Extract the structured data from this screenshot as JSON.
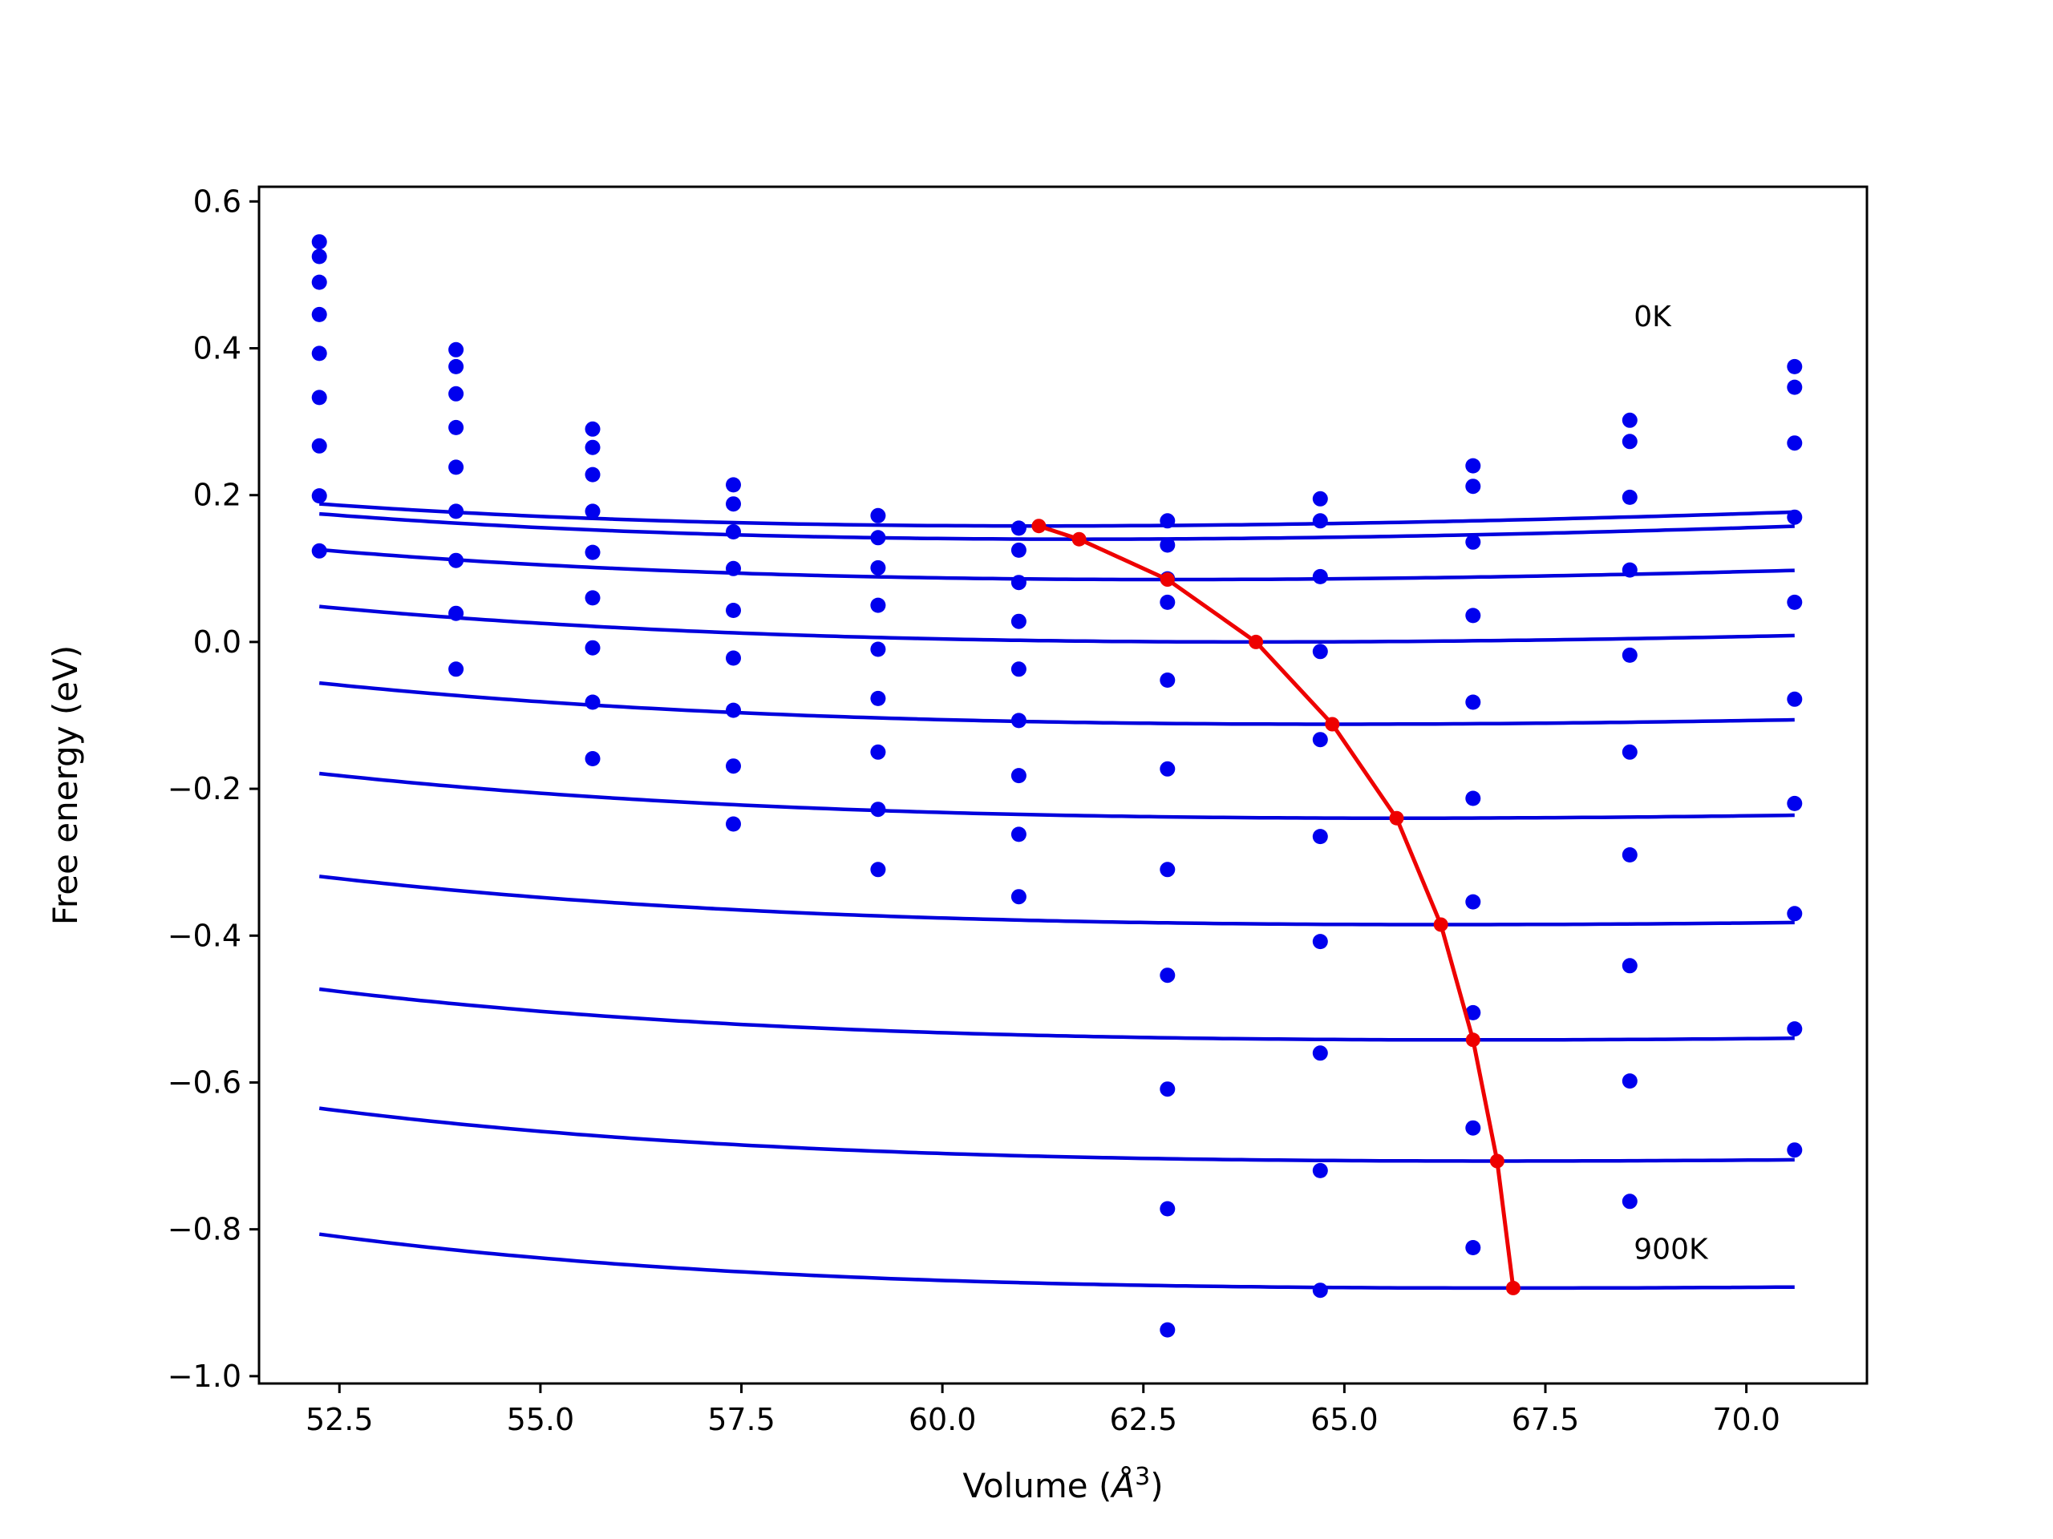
{
  "chart_data": {
    "type": "line",
    "xlabel_prefix": "Volume (",
    "xlabel_unit": "Å",
    "xlabel_exp": "3",
    "xlabel_suffix": ")",
    "ylabel": "Free energy (eV)",
    "xlim": [
      51.5,
      71.5
    ],
    "ylim": [
      -1.01,
      0.62
    ],
    "x_ticks": [
      52.5,
      55.0,
      57.5,
      60.0,
      62.5,
      65.0,
      67.5,
      70.0
    ],
    "x_tick_labels": [
      "52.5",
      "55.0",
      "57.5",
      "60.0",
      "62.5",
      "65.0",
      "67.5",
      "70.0"
    ],
    "y_ticks": [
      0.6,
      0.4,
      0.2,
      0.0,
      -0.2,
      -0.4,
      -0.6,
      -0.8,
      -1.0
    ],
    "y_tick_labels": [
      "0.6",
      "0.4",
      "0.2",
      "0.0",
      "−0.2",
      "−0.4",
      "−0.6",
      "−0.8",
      "−1.0"
    ],
    "annotations": [
      {
        "text": "0K",
        "x": 68.6,
        "y": 0.43
      },
      {
        "text": "900K",
        "x": 68.6,
        "y": -0.84
      }
    ],
    "point_x": [
      52.25,
      53.95,
      55.65,
      57.4,
      59.2,
      60.95,
      62.8,
      64.7,
      66.6,
      68.55,
      70.6
    ],
    "points_by_temperature": [
      [
        0.545,
        0.398,
        0.29,
        0.214,
        0.172,
        0.155,
        0.165,
        0.195,
        0.24,
        0.302,
        0.375
      ],
      [
        0.525,
        0.375,
        0.265,
        0.188,
        0.142,
        0.125,
        0.132,
        0.165,
        0.212,
        0.273,
        0.347
      ],
      [
        0.49,
        0.338,
        0.228,
        0.15,
        0.101,
        0.081,
        0.086,
        0.089,
        0.136,
        0.197,
        0.271
      ],
      [
        0.446,
        0.292,
        0.178,
        0.1,
        0.05,
        0.028,
        0.054,
        -0.013,
        0.036,
        0.098,
        0.17
      ],
      [
        0.393,
        0.238,
        0.122,
        0.043,
        -0.01,
        -0.037,
        -0.052,
        -0.133,
        -0.082,
        -0.018,
        0.054
      ],
      [
        0.333,
        0.178,
        0.06,
        -0.022,
        -0.077,
        -0.107,
        -0.173,
        -0.265,
        -0.213,
        -0.15,
        -0.078
      ],
      [
        0.267,
        0.111,
        -0.008,
        -0.093,
        -0.15,
        -0.182,
        -0.31,
        -0.408,
        -0.354,
        -0.29,
        -0.22
      ],
      [
        0.199,
        0.039,
        -0.082,
        -0.169,
        -0.228,
        -0.262,
        -0.454,
        -0.56,
        -0.505,
        -0.441,
        -0.37
      ],
      [
        0.124,
        -0.037,
        -0.159,
        -0.248,
        -0.31,
        -0.347,
        -0.609,
        -0.72,
        -0.662,
        -0.598,
        -0.527
      ],
      [
        null,
        null,
        null,
        null,
        null,
        null,
        -0.772,
        -0.883,
        -0.825,
        -0.762,
        -0.692
      ],
      [
        null,
        null,
        null,
        null,
        null,
        null,
        -0.937,
        null,
        null,
        null,
        null
      ]
    ],
    "fit_curves": [
      {
        "x_min": 52.25,
        "x_max": 70.6,
        "v0": 61.2,
        "e0": 0.158,
        "b": 3.6,
        "bp": 4.6
      },
      {
        "x_min": 52.25,
        "x_max": 70.6,
        "v0": 61.7,
        "e0": 0.14,
        "b": 3.7,
        "bp": 4.5
      },
      {
        "x_min": 52.25,
        "x_max": 70.6,
        "v0": 62.8,
        "e0": 0.085,
        "b": 3.4,
        "bp": 4.7
      },
      {
        "x_min": 52.25,
        "x_max": 70.6,
        "v0": 63.9,
        "e0": 0.0,
        "b": 3.2,
        "bp": 5.0
      },
      {
        "x_min": 52.25,
        "x_max": 70.6,
        "v0": 64.85,
        "e0": -0.112,
        "b": 3.0,
        "bp": 5.6
      },
      {
        "x_min": 52.25,
        "x_max": 70.6,
        "v0": 65.65,
        "e0": -0.24,
        "b": 2.7,
        "bp": 6.3
      },
      {
        "x_min": 52.25,
        "x_max": 70.6,
        "v0": 66.2,
        "e0": -0.385,
        "b": 2.5,
        "bp": 7.2
      },
      {
        "x_min": 52.25,
        "x_max": 70.6,
        "v0": 66.6,
        "e0": -0.542,
        "b": 2.3,
        "bp": 8.2
      },
      {
        "x_min": 52.25,
        "x_max": 70.6,
        "v0": 66.9,
        "e0": -0.707,
        "b": 2.1,
        "bp": 9.5
      },
      {
        "x_min": 52.25,
        "x_max": 70.6,
        "v0": 67.1,
        "e0": -0.88,
        "b": 1.9,
        "bp": 11.0
      }
    ],
    "minimum_path": {
      "x": [
        61.2,
        61.7,
        62.8,
        63.9,
        64.85,
        65.65,
        66.2,
        66.6,
        66.9,
        67.1
      ],
      "y": [
        0.158,
        0.14,
        0.085,
        0.0,
        -0.112,
        -0.24,
        -0.385,
        -0.542,
        -0.707,
        -0.88
      ]
    },
    "colors": {
      "fit": "#0000dd",
      "points": "#0000ee",
      "minimum_path": "#ee0000",
      "axes": "#000000"
    }
  }
}
